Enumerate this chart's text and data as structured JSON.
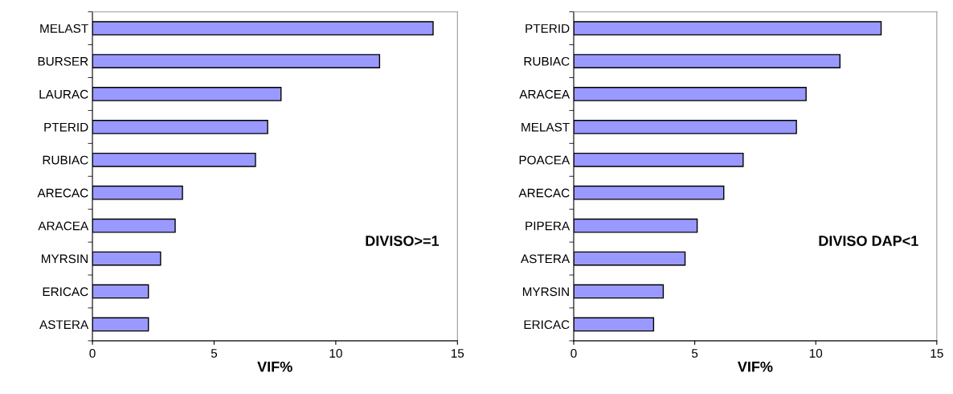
{
  "chart_data": [
    {
      "type": "bar",
      "orientation": "horizontal",
      "xlabel": "VIF%",
      "categories": [
        "MELAST",
        "BURSER",
        "LAURAC",
        "PTERID",
        "RUBIAC",
        "ARECAC",
        "ARACEA",
        "MYRSIN",
        "ERICAC",
        "ASTERA"
      ],
      "values": [
        14.0,
        11.8,
        7.75,
        7.2,
        6.7,
        3.7,
        3.4,
        2.8,
        2.3,
        2.3
      ],
      "color": "#9999ff",
      "xlim": [
        0,
        15
      ],
      "xticks": [
        0,
        5,
        10,
        15
      ],
      "annotations": [
        "DIVISO>=1"
      ],
      "grid": false,
      "legend": false
    },
    {
      "type": "bar",
      "orientation": "horizontal",
      "xlabel": "VIF%",
      "categories": [
        "PTERID",
        "RUBIAC",
        "ARACEA",
        "MELAST",
        "POACEA",
        "ARECAC",
        "PIPERA",
        "ASTERA",
        "MYRSIN",
        "ERICAC"
      ],
      "values": [
        12.7,
        11.0,
        9.6,
        9.2,
        7.0,
        6.2,
        5.1,
        4.6,
        3.7,
        3.3
      ],
      "color": "#9999ff",
      "xlim": [
        0,
        15
      ],
      "xticks": [
        0,
        5,
        10,
        15
      ],
      "annotations": [
        "DIVISO DAP<1"
      ],
      "grid": false,
      "legend": false
    }
  ]
}
